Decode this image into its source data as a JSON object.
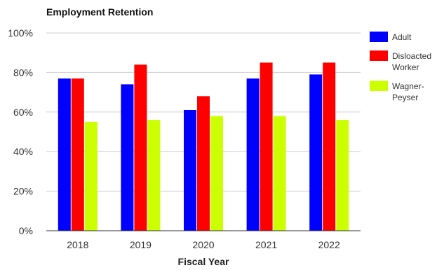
{
  "chart_data": {
    "type": "bar",
    "title": "Employment Retention",
    "xlabel": "Fiscal Year",
    "ylabel": "",
    "categories": [
      "2018",
      "2019",
      "2020",
      "2021",
      "2022"
    ],
    "ylim": [
      0,
      100
    ],
    "yticks": [
      "0%",
      "20%",
      "40%",
      "60%",
      "80%",
      "100%"
    ],
    "grid": true,
    "legend_position": "right",
    "series": [
      {
        "name": "Adult",
        "legend_lines": [
          "Adult"
        ],
        "color": "#0000ff",
        "values": [
          77,
          74,
          61,
          77,
          79
        ]
      },
      {
        "name": "Disloacted Worker",
        "legend_lines": [
          "Disloacted",
          "Worker"
        ],
        "color": "#ff0000",
        "values": [
          77,
          84,
          68,
          85,
          85
        ]
      },
      {
        "name": "Wagner-Peyser",
        "legend_lines": [
          "Wagner-",
          "Peyser"
        ],
        "color": "#ccff00",
        "values": [
          55,
          56,
          58,
          58,
          56
        ]
      }
    ]
  }
}
